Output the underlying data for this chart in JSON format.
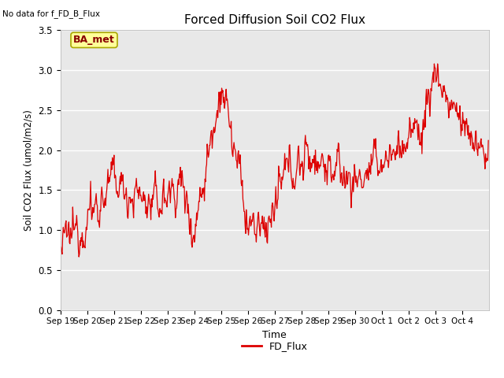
{
  "title": "Forced Diffusion Soil CO2 Flux",
  "xlabel": "Time",
  "ylabel": "Soil CO2 Flux (umol/m2/s)",
  "top_left_text": "No data for f_FD_B_Flux",
  "legend_label": "FD_Flux",
  "annotation_box": "BA_met",
  "ylim": [
    0.0,
    3.5
  ],
  "yticks": [
    0.0,
    0.5,
    1.0,
    1.5,
    2.0,
    2.5,
    3.0,
    3.5
  ],
  "line_color": "#dd0000",
  "bg_color": "#e8e8e8",
  "fig_bg_color": "#ffffff",
  "grid_color": "#ffffff",
  "annotation_bg": "#ffff99",
  "annotation_border": "#aaa800",
  "seed": 12345
}
